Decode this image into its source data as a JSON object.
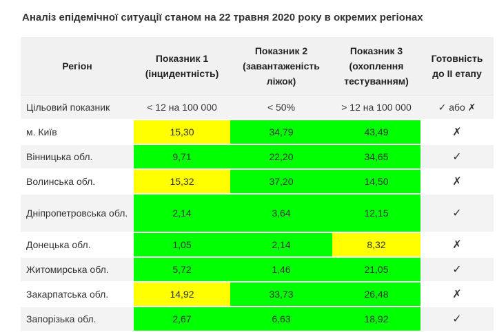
{
  "title": "Аналіз епідемічної ситуації станом на 22 травня 2020 року в окремих регіонах",
  "colors": {
    "green": "#00ff00",
    "yellow": "#ffff00",
    "header_bg": "#f1f1f1",
    "stripe": "#f3f3f3"
  },
  "headers": [
    "Регіон",
    "Показник 1 (інцидентність)",
    "Показник 2 (завантаженість ліжок)",
    "Показник 3 (охоплення тестуванням)",
    "Готовність до ІІ етапу"
  ],
  "target": {
    "label": "Цільовий показник",
    "p1": "< 12 на 100 000",
    "p2": "< 50%",
    "p3": "> 12 на 100 000",
    "ready": "✓ або ✗"
  },
  "rows": [
    {
      "region": "м. Київ",
      "p1": "15,30",
      "p2": "34,79",
      "p3": "43,49",
      "ready": "✗",
      "c1": "yellow",
      "c2": "green",
      "c3": "green"
    },
    {
      "region": "Вінницька обл.",
      "p1": "9,71",
      "p2": "22,20",
      "p3": "34,65",
      "ready": "✓",
      "c1": "green",
      "c2": "green",
      "c3": "green"
    },
    {
      "region": "Волинська обл.",
      "p1": "15,32",
      "p2": "37,20",
      "p3": "14,50",
      "ready": "✗",
      "c1": "yellow",
      "c2": "green",
      "c3": "green"
    },
    {
      "region": "Дніпропетровська обл.",
      "p1": "2,14",
      "p2": "3,64",
      "p3": "12,15",
      "ready": "✓",
      "c1": "green",
      "c2": "green",
      "c3": "green"
    },
    {
      "region": "Донецька обл.",
      "p1": "1,05",
      "p2": "2,14",
      "p3": "8,32",
      "ready": "✗",
      "c1": "green",
      "c2": "green",
      "c3": "yellow"
    },
    {
      "region": "Житомирська обл.",
      "p1": "5,72",
      "p2": "1,46",
      "p3": "21,05",
      "ready": "✓",
      "c1": "green",
      "c2": "green",
      "c3": "green"
    },
    {
      "region": "Закарпатська обл.",
      "p1": "14,92",
      "p2": "33,73",
      "p3": "26,48",
      "ready": "✗",
      "c1": "yellow",
      "c2": "green",
      "c3": "green"
    },
    {
      "region": "Запорізька обл.",
      "p1": "2,67",
      "p2": "6,63",
      "p3": "18,92",
      "ready": "✓",
      "c1": "green",
      "c2": "green",
      "c3": "green"
    }
  ]
}
